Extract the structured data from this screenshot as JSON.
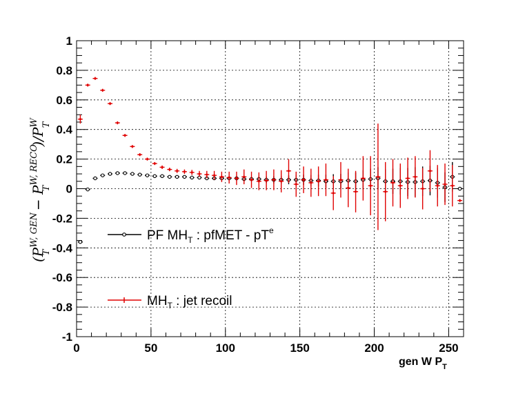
{
  "chart_data": {
    "type": "scatter",
    "xlabel": "gen W P",
    "xlabel_sub": "T",
    "ylabel": {
      "open": "(P",
      "sup1": "W, GEN",
      "sub1": "T",
      "minus": " − P",
      "sup2": "W, RECO",
      "sub2": "T",
      "close": ")/P",
      "sup3": "W",
      "sub3": "T"
    },
    "xlim": [
      0,
      260
    ],
    "ylim": [
      -1,
      1
    ],
    "x_ticks": [
      0,
      50,
      100,
      150,
      200,
      250
    ],
    "x_tick_labels": [
      "0",
      "50",
      "100",
      "150",
      "200",
      "250"
    ],
    "y_ticks": [
      -1,
      -0.8,
      -0.6,
      -0.4,
      -0.2,
      0,
      0.2,
      0.4,
      0.6,
      0.8,
      1
    ],
    "y_tick_labels": [
      "-1",
      "-0.8",
      "-0.6",
      "-0.4",
      "-0.2",
      "0",
      "0.2",
      "0.4",
      "0.6",
      "0.8",
      "1"
    ],
    "grid": true,
    "legend_placement": "center-left",
    "series": [
      {
        "name": "PF MH",
        "name_sub": "T",
        "name_rest": " : pfMET - pT",
        "name_sup": "e",
        "color": "#000000",
        "marker": "open-circle",
        "x": [
          2.5,
          7.5,
          12.5,
          17.5,
          22.5,
          27.5,
          32.5,
          37.5,
          42.5,
          47.5,
          52.5,
          57.5,
          62.5,
          67.5,
          72.5,
          77.5,
          82.5,
          87.5,
          92.5,
          97.5,
          102.5,
          107.5,
          112.5,
          117.5,
          122.5,
          127.5,
          132.5,
          137.5,
          142.5,
          147.5,
          152.5,
          157.5,
          162.5,
          167.5,
          172.5,
          177.5,
          182.5,
          187.5,
          192.5,
          197.5,
          202.5,
          207.5,
          212.5,
          217.5,
          222.5,
          227.5,
          232.5,
          237.5,
          242.5,
          247.5,
          252.5,
          257.5
        ],
        "y": [
          -0.36,
          -0.005,
          0.07,
          0.09,
          0.1,
          0.105,
          0.105,
          0.1,
          0.095,
          0.09,
          0.085,
          0.085,
          0.08,
          0.08,
          0.08,
          0.075,
          0.075,
          0.07,
          0.07,
          0.07,
          0.07,
          0.07,
          0.065,
          0.065,
          0.065,
          0.06,
          0.06,
          0.06,
          0.06,
          0.06,
          0.06,
          0.055,
          0.055,
          0.05,
          0.05,
          0.05,
          0.055,
          0.05,
          0.06,
          0.065,
          0.07,
          0.05,
          0.05,
          0.05,
          0.045,
          0.045,
          0.05,
          0.055,
          0.04,
          0.01,
          0.08,
          0.0
        ],
        "yerr": [
          0.005,
          0.003,
          0.003,
          0.003,
          0.003,
          0.003,
          0.003,
          0.003,
          0.003,
          0.003,
          0.004,
          0.004,
          0.004,
          0.005,
          0.005,
          0.006,
          0.007,
          0.008,
          0.009,
          0.01,
          0.012,
          0.014,
          0.015,
          0.017,
          0.02,
          0.022,
          0.025,
          0.027,
          0.03,
          0.032,
          0.035,
          0.038,
          0.04,
          0.045,
          0.048,
          0.05,
          0.055,
          0.06,
          0.065,
          0.07,
          0.075,
          0.08,
          0.085,
          0.09,
          0.095,
          0.1,
          0.1,
          0.1,
          0.1,
          0.1,
          0.1,
          0.005
        ]
      },
      {
        "name": "MH",
        "name_sub": "T",
        "name_rest": " : jet recoil",
        "name_sup": "",
        "color": "#ff0000",
        "marker": "cross",
        "x": [
          2.5,
          7.5,
          12.5,
          17.5,
          22.5,
          27.5,
          32.5,
          37.5,
          42.5,
          47.5,
          52.5,
          57.5,
          62.5,
          67.5,
          72.5,
          77.5,
          82.5,
          87.5,
          92.5,
          97.5,
          102.5,
          107.5,
          112.5,
          117.5,
          122.5,
          127.5,
          132.5,
          137.5,
          142.5,
          147.5,
          152.5,
          157.5,
          162.5,
          167.5,
          172.5,
          177.5,
          182.5,
          187.5,
          192.5,
          197.5,
          202.5,
          207.5,
          212.5,
          217.5,
          222.5,
          227.5,
          232.5,
          237.5,
          242.5,
          247.5,
          252.5,
          257.5
        ],
        "y": [
          0.47,
          0.7,
          0.745,
          0.665,
          0.575,
          0.445,
          0.36,
          0.285,
          0.23,
          0.2,
          0.17,
          0.145,
          0.13,
          0.12,
          0.115,
          0.11,
          0.1,
          0.095,
          0.09,
          0.08,
          0.075,
          0.07,
          0.08,
          0.06,
          0.05,
          0.055,
          0.06,
          0.05,
          0.12,
          0.03,
          0.06,
          0.04,
          0.05,
          0.06,
          -0.03,
          0.06,
          0.005,
          -0.02,
          0.07,
          0.02,
          0.08,
          -0.02,
          0.04,
          0.02,
          0.07,
          0.08,
          0.0,
          0.12,
          0.02,
          0.03,
          0.02,
          -0.08
        ],
        "yerr": [
          0.03,
          0.01,
          0.01,
          0.01,
          0.01,
          0.01,
          0.01,
          0.01,
          0.01,
          0.01,
          0.01,
          0.012,
          0.012,
          0.014,
          0.015,
          0.017,
          0.02,
          0.025,
          0.03,
          0.035,
          0.04,
          0.045,
          0.05,
          0.055,
          0.06,
          0.065,
          0.07,
          0.075,
          0.08,
          0.085,
          0.09,
          0.095,
          0.1,
          0.11,
          0.115,
          0.12,
          0.13,
          0.14,
          0.15,
          0.2,
          0.36,
          0.2,
          0.16,
          0.15,
          0.14,
          0.14,
          0.14,
          0.14,
          0.14,
          0.14,
          0.14,
          0.01
        ]
      }
    ]
  }
}
